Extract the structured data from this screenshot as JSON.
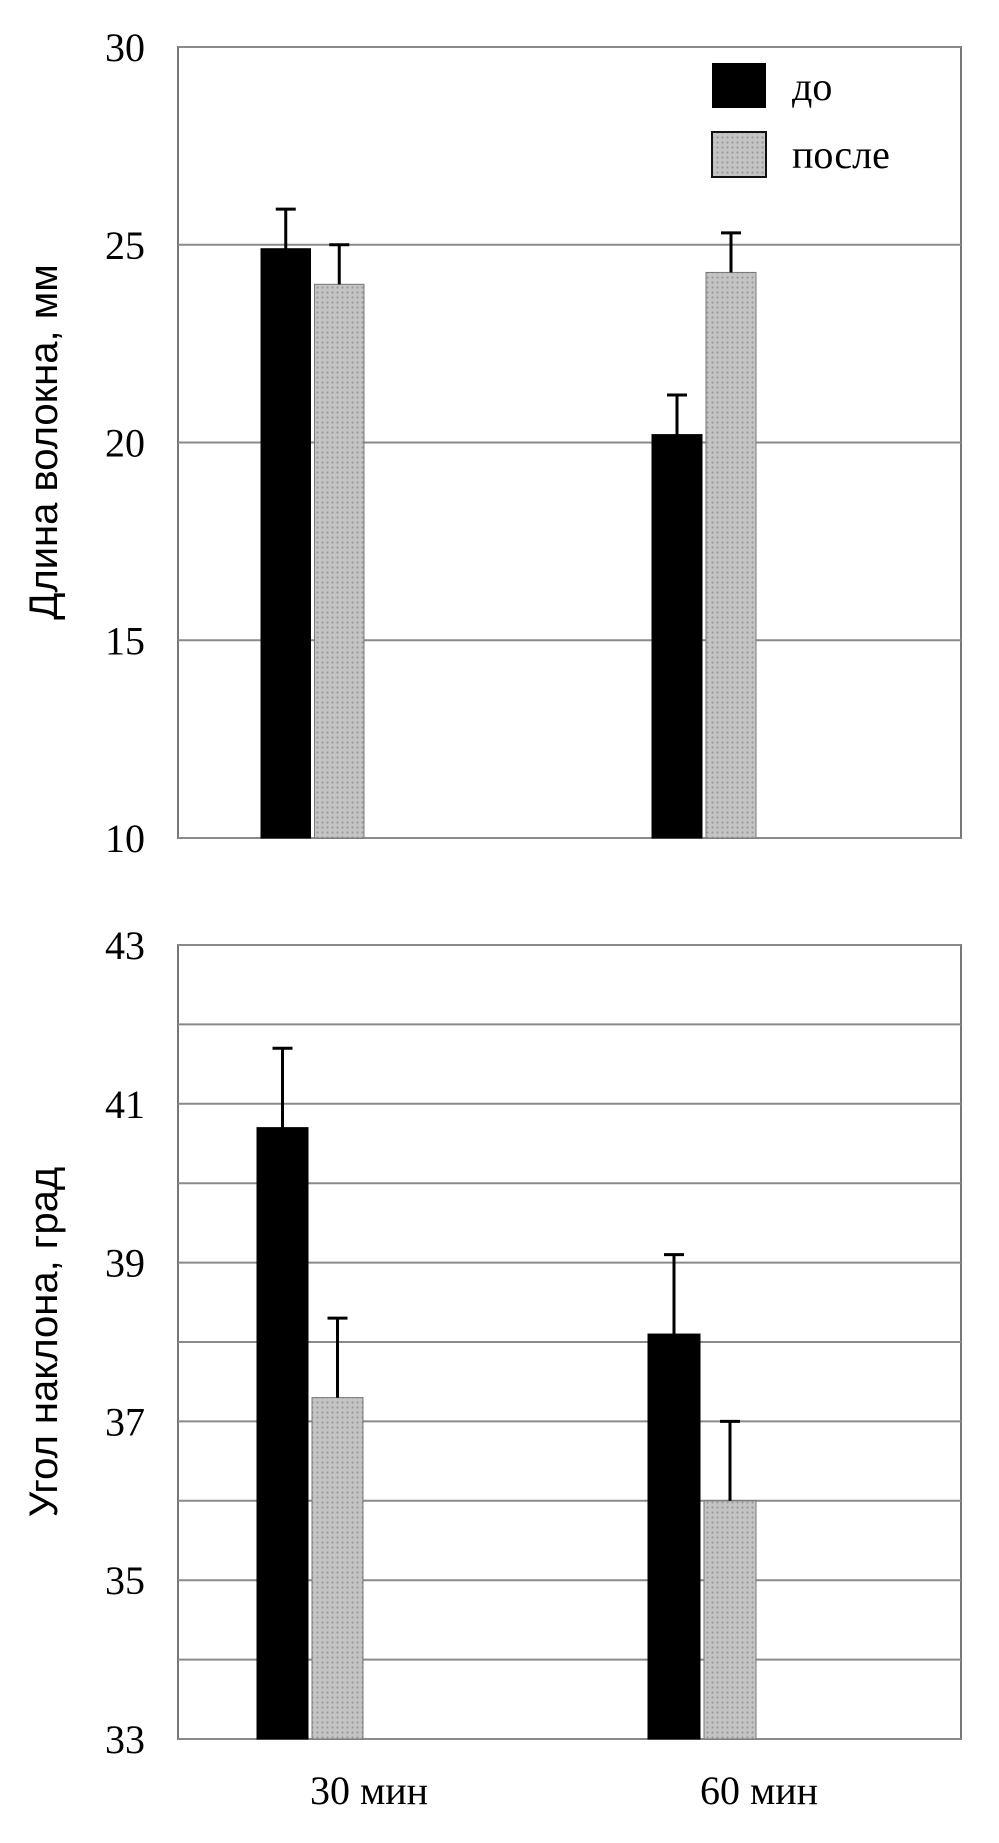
{
  "chart_data": [
    {
      "type": "bar",
      "title": "",
      "xlabel": "",
      "ylabel": "Длина волокна, мм",
      "ylim": [
        10,
        30
      ],
      "yticks": [
        10,
        15,
        20,
        25,
        30
      ],
      "grid": true,
      "legend_position": "top-right",
      "categories": [
        "30 мин",
        "60 мин"
      ],
      "series": [
        {
          "name": "до",
          "values": [
            24.9,
            20.2
          ],
          "errors": [
            1.0,
            1.0
          ],
          "color": "#000000"
        },
        {
          "name": "после",
          "values": [
            24.0,
            24.3
          ],
          "errors": [
            1.0,
            1.0
          ],
          "color": "#bdbdbd"
        }
      ]
    },
    {
      "type": "bar",
      "title": "",
      "xlabel": "",
      "ylabel": "Угол наклона, град",
      "ylim": [
        33,
        43
      ],
      "yticks": [
        33,
        35,
        37,
        39,
        41,
        43
      ],
      "grid": true,
      "categories": [
        "30 мин",
        "60 мин"
      ],
      "series": [
        {
          "name": "до",
          "values": [
            40.7,
            38.1
          ],
          "errors": [
            1.0,
            1.0
          ],
          "color": "#000000"
        },
        {
          "name": "после",
          "values": [
            37.3,
            36.0
          ],
          "errors": [
            1.0,
            1.0
          ],
          "color": "#bdbdbd"
        }
      ]
    }
  ]
}
